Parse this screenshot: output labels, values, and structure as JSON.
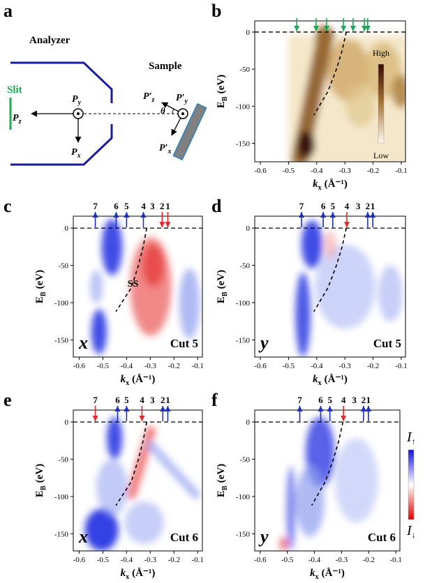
{
  "panel_a": {
    "label": "a",
    "analyzer": "Analyzer",
    "sample": "Sample",
    "slit": "Slit",
    "theta": "θ",
    "vectors": [
      {
        "main": "P",
        "sub": "y"
      },
      {
        "main": "P",
        "sub": "z"
      },
      {
        "main": "P",
        "sub": "x"
      },
      {
        "main": "P′",
        "sub": "z"
      },
      {
        "main": "P′",
        "sub": "y"
      },
      {
        "main": "P′",
        "sub": "x"
      }
    ]
  },
  "chart_data": [
    {
      "type": "heatmap",
      "panel": "b",
      "colormap": "brown",
      "xlim": [
        -0.62,
        -0.085
      ],
      "ylim": [
        -175,
        15
      ],
      "xticks": [
        -0.6,
        -0.5,
        -0.4,
        -0.3,
        -0.2,
        -0.1
      ],
      "yticks": [
        0,
        -50,
        -100,
        -150
      ],
      "xlabel": {
        "main": "k",
        "sub": "x",
        "unit": "(Å⁻¹)"
      },
      "ylabel": {
        "main": "E",
        "sub": "B",
        "unit": "(eV)"
      },
      "colorbar": {
        "high": "High",
        "low": "Low"
      },
      "markers": [
        {
          "x": -0.471,
          "direction": "down",
          "color": "#1ea85a"
        },
        {
          "x": -0.402,
          "direction": "down",
          "color": "#1ea85a"
        },
        {
          "x": -0.365,
          "direction": "down",
          "color": "#1ea85a"
        },
        {
          "x": -0.305,
          "direction": "down",
          "color": "#1ea85a"
        },
        {
          "x": -0.271,
          "direction": "down",
          "color": "#1ea85a"
        },
        {
          "x": -0.231,
          "direction": "down",
          "color": "#1ea85a"
        },
        {
          "x": -0.219,
          "direction": "down",
          "color": "#1ea85a"
        }
      ],
      "dispersion": {
        "x": [
          -0.295,
          -0.31,
          -0.33,
          -0.36,
          -0.41
        ],
        "y": [
          0,
          -25,
          -50,
          -80,
          -112
        ]
      }
    },
    {
      "type": "heatmap",
      "panel": "c",
      "colormap": "bwr",
      "xlim": [
        -0.625,
        -0.08
      ],
      "ylim": [
        -173,
        16
      ],
      "xticks": [
        -0.6,
        -0.5,
        -0.4,
        -0.3,
        -0.2,
        -0.1
      ],
      "yticks": [
        0,
        -50,
        -100,
        -150
      ],
      "xlabel": {
        "main": "k",
        "sub": "x",
        "unit": "(Å⁻¹)"
      },
      "ylabel": {
        "main": "E",
        "sub": "B",
        "unit": "(eV)"
      },
      "markers": [
        {
          "x": -0.532,
          "label": "7",
          "direction": "up",
          "color": "#1c2fc0"
        },
        {
          "x": -0.444,
          "label": "6",
          "direction": "up",
          "color": "#1c2fc0"
        },
        {
          "x": -0.4,
          "label": "5",
          "direction": "up",
          "color": "#1c2fc0"
        },
        {
          "x": -0.329,
          "label": "4",
          "direction": "up",
          "color": "#1c2fc0"
        },
        {
          "x": -0.291,
          "label": "3"
        },
        {
          "x": -0.25,
          "label": "2",
          "direction": "down",
          "color": "#e02828"
        },
        {
          "x": -0.226,
          "label": "1",
          "direction": "down",
          "color": "#e02828"
        }
      ],
      "dispersion": {
        "x": [
          -0.315,
          -0.33,
          -0.35,
          -0.38,
          -0.445
        ],
        "y": [
          0,
          -25,
          -50,
          -80,
          -112
        ]
      },
      "annotation": "SS",
      "polarization": "x",
      "cut": "Cut 5"
    },
    {
      "type": "heatmap",
      "panel": "d",
      "colormap": "bwr",
      "xlim": [
        -0.62,
        -0.085
      ],
      "ylim": [
        -173,
        16
      ],
      "xticks": [
        -0.6,
        -0.5,
        -0.4,
        -0.3,
        -0.2,
        -0.1
      ],
      "yticks": [
        0,
        -50,
        -100,
        -150
      ],
      "xlabel": {
        "main": "k",
        "sub": "x",
        "unit": "(Å⁻¹)"
      },
      "ylabel": {
        "main": "E",
        "sub": "B",
        "unit": "(eV)"
      },
      "markers": [
        {
          "x": -0.454,
          "label": "7",
          "direction": "up",
          "color": "#1c2fc0"
        },
        {
          "x": -0.377,
          "label": "6",
          "direction": "up",
          "color": "#1c2fc0"
        },
        {
          "x": -0.343,
          "label": "5",
          "direction": "up",
          "color": "#1c2fc0"
        },
        {
          "x": -0.293,
          "label": "4",
          "direction": "down",
          "color": "#e02828"
        },
        {
          "x": -0.253,
          "label": "3"
        },
        {
          "x": -0.219,
          "label": "2",
          "direction": "up",
          "color": "#1c2fc0"
        },
        {
          "x": -0.201,
          "label": "1",
          "direction": "up",
          "color": "#1c2fc0"
        }
      ],
      "dispersion": {
        "x": [
          -0.295,
          -0.31,
          -0.33,
          -0.36,
          -0.41
        ],
        "y": [
          0,
          -25,
          -50,
          -80,
          -112
        ]
      },
      "polarization": "y",
      "cut": "Cut 5"
    },
    {
      "type": "heatmap",
      "panel": "e",
      "colormap": "bwr",
      "xlim": [
        -0.625,
        -0.08
      ],
      "ylim": [
        -173,
        16
      ],
      "xticks": [
        -0.6,
        -0.5,
        -0.4,
        -0.3,
        -0.2,
        -0.1
      ],
      "yticks": [
        0,
        -50,
        -100,
        -150
      ],
      "xlabel": {
        "main": "k",
        "sub": "x",
        "unit": "(Å⁻¹)"
      },
      "ylabel": {
        "main": "E",
        "sub": "B",
        "unit": "(eV)"
      },
      "markers": [
        {
          "x": -0.532,
          "label": "7",
          "direction": "down",
          "color": "#e02828"
        },
        {
          "x": -0.438,
          "label": "6",
          "direction": "up",
          "color": "#1c2fc0"
        },
        {
          "x": -0.4,
          "label": "5",
          "direction": "up",
          "color": "#1c2fc0"
        },
        {
          "x": -0.335,
          "label": "4",
          "direction": "down",
          "color": "#e02828"
        },
        {
          "x": -0.291,
          "label": "3"
        },
        {
          "x": -0.247,
          "label": "2",
          "direction": "up",
          "color": "#1c2fc0"
        },
        {
          "x": -0.226,
          "label": "1",
          "direction": "up",
          "color": "#1c2fc0"
        }
      ],
      "dispersion": {
        "x": [
          -0.315,
          -0.33,
          -0.35,
          -0.38,
          -0.445
        ],
        "y": [
          0,
          -25,
          -50,
          -80,
          -112
        ]
      },
      "polarization": "x",
      "cut": "Cut 6"
    },
    {
      "type": "heatmap",
      "panel": "f",
      "colormap": "bwr",
      "xlim": [
        -0.62,
        -0.085
      ],
      "ylim": [
        -173,
        16
      ],
      "xticks": [
        -0.6,
        -0.5,
        -0.4,
        -0.3,
        -0.2,
        -0.1
      ],
      "yticks": [
        0,
        -50,
        -100,
        -150
      ],
      "xlabel": {
        "main": "k",
        "sub": "x",
        "unit": "(Å⁻¹)"
      },
      "ylabel": {
        "main": "E",
        "sub": "B",
        "unit": "(eV)"
      },
      "colorbar": {
        "high": {
          "main": "I",
          "sub": "↑"
        },
        "low": {
          "main": "I",
          "sub": "↓"
        }
      },
      "markers": [
        {
          "x": -0.454,
          "label": "7",
          "direction": "up",
          "color": "#1c2fc0"
        },
        {
          "x": -0.377,
          "label": "6",
          "direction": "up",
          "color": "#1c2fc0"
        },
        {
          "x": -0.343,
          "label": "5",
          "direction": "up",
          "color": "#1c2fc0"
        },
        {
          "x": -0.293,
          "label": "4",
          "direction": "down",
          "color": "#e02828"
        },
        {
          "x": -0.253,
          "label": "3"
        },
        {
          "x": -0.219,
          "label": "2",
          "direction": "up",
          "color": "#1c2fc0"
        },
        {
          "x": -0.201,
          "label": "1",
          "direction": "up",
          "color": "#1c2fc0"
        }
      ],
      "dispersion": {
        "x": [
          -0.295,
          -0.31,
          -0.33,
          -0.36,
          -0.41
        ],
        "y": [
          0,
          -25,
          -50,
          -80,
          -112
        ]
      },
      "polarization": "y",
      "cut": "Cut 6"
    }
  ]
}
